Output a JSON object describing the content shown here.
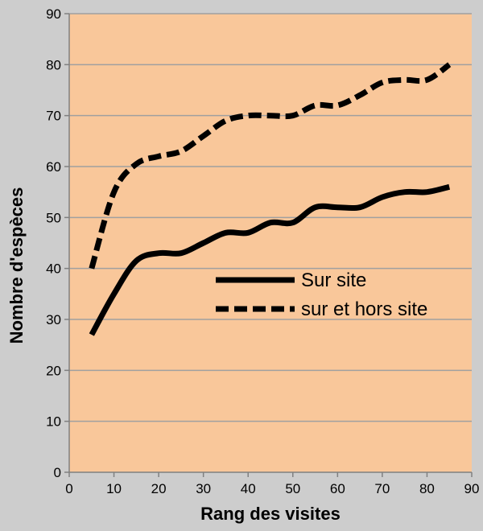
{
  "chart_data": {
    "type": "line",
    "title": "",
    "xlabel": "Rang des visites",
    "ylabel": "Nombre d'espèces",
    "xlim": [
      0,
      90
    ],
    "ylim": [
      0,
      90
    ],
    "xticks": [
      0,
      10,
      20,
      30,
      40,
      50,
      60,
      70,
      80,
      90
    ],
    "yticks": [
      0,
      10,
      20,
      30,
      40,
      50,
      60,
      70,
      80,
      90
    ],
    "grid": "horizontal",
    "legend": "center-right inside plot",
    "colors": {
      "plot_background": "#f9c79a",
      "outer_background": "#cdcdcd",
      "gridline": "#a0a0a0",
      "series": "#000000"
    },
    "series": [
      {
        "name": "Sur site",
        "style": "solid",
        "x": [
          5,
          10,
          15,
          20,
          25,
          30,
          35,
          40,
          45,
          50,
          55,
          60,
          65,
          70,
          75,
          80,
          85
        ],
        "values": [
          27,
          35,
          41.5,
          43,
          43,
          45,
          47,
          47,
          49,
          49,
          52,
          52,
          52,
          54,
          55,
          55,
          56
        ]
      },
      {
        "name": "sur et hors site",
        "style": "dashed",
        "x": [
          5,
          10,
          15,
          20,
          25,
          30,
          35,
          40,
          45,
          50,
          55,
          60,
          65,
          70,
          75,
          80,
          85
        ],
        "values": [
          40,
          55,
          60.5,
          62,
          63,
          66,
          69,
          70,
          70,
          70,
          72,
          72,
          74,
          76.5,
          77,
          77,
          80
        ]
      }
    ]
  }
}
